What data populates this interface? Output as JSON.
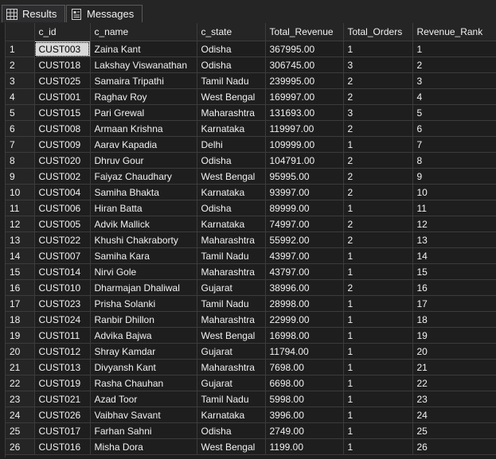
{
  "tabs": {
    "results_label": "Results",
    "messages_label": "Messages"
  },
  "columns": [
    "",
    "c_id",
    "c_name",
    "c_state",
    "Total_Revenue",
    "Total_Orders",
    "Revenue_Rank"
  ],
  "rows": [
    [
      "1",
      "CUST003",
      "Zaina Kant",
      "Odisha",
      "367995.00",
      "1",
      "1"
    ],
    [
      "2",
      "CUST018",
      "Lakshay Viswanathan",
      "Odisha",
      "306745.00",
      "3",
      "2"
    ],
    [
      "3",
      "CUST025",
      "Samaira Tripathi",
      "Tamil Nadu",
      "239995.00",
      "2",
      "3"
    ],
    [
      "4",
      "CUST001",
      "Raghav Roy",
      "West Bengal",
      "169997.00",
      "2",
      "4"
    ],
    [
      "5",
      "CUST015",
      "Pari Grewal",
      "Maharashtra",
      "131693.00",
      "3",
      "5"
    ],
    [
      "6",
      "CUST008",
      "Armaan Krishna",
      "Karnataka",
      "119997.00",
      "2",
      "6"
    ],
    [
      "7",
      "CUST009",
      "Aarav Kapadia",
      "Delhi",
      "109999.00",
      "1",
      "7"
    ],
    [
      "8",
      "CUST020",
      "Dhruv Gour",
      "Odisha",
      "104791.00",
      "2",
      "8"
    ],
    [
      "9",
      "CUST002",
      "Faiyaz Chaudhary",
      "West Bengal",
      "95995.00",
      "2",
      "9"
    ],
    [
      "10",
      "CUST004",
      "Samiha Bhakta",
      "Karnataka",
      "93997.00",
      "2",
      "10"
    ],
    [
      "11",
      "CUST006",
      "Hiran Batta",
      "Odisha",
      "89999.00",
      "1",
      "11"
    ],
    [
      "12",
      "CUST005",
      "Advik Mallick",
      "Karnataka",
      "74997.00",
      "2",
      "12"
    ],
    [
      "13",
      "CUST022",
      "Khushi Chakraborty",
      "Maharashtra",
      "55992.00",
      "2",
      "13"
    ],
    [
      "14",
      "CUST007",
      "Samiha Kara",
      "Tamil Nadu",
      "43997.00",
      "1",
      "14"
    ],
    [
      "15",
      "CUST014",
      "Nirvi Gole",
      "Maharashtra",
      "43797.00",
      "1",
      "15"
    ],
    [
      "16",
      "CUST010",
      "Dharmajan Dhaliwal",
      "Gujarat",
      "38996.00",
      "2",
      "16"
    ],
    [
      "17",
      "CUST023",
      "Prisha Solanki",
      "Tamil Nadu",
      "28998.00",
      "1",
      "17"
    ],
    [
      "18",
      "CUST024",
      "Ranbir Dhillon",
      "Maharashtra",
      "22999.00",
      "1",
      "18"
    ],
    [
      "19",
      "CUST011",
      "Advika Bajwa",
      "West Bengal",
      "16998.00",
      "1",
      "19"
    ],
    [
      "20",
      "CUST012",
      "Shray Kamdar",
      "Gujarat",
      "11794.00",
      "1",
      "20"
    ],
    [
      "21",
      "CUST013",
      "Divyansh Kant",
      "Maharashtra",
      "7698.00",
      "1",
      "21"
    ],
    [
      "22",
      "CUST019",
      "Rasha Chauhan",
      "Gujarat",
      "6698.00",
      "1",
      "22"
    ],
    [
      "23",
      "CUST021",
      "Azad Toor",
      "Tamil Nadu",
      "5998.00",
      "1",
      "23"
    ],
    [
      "24",
      "CUST026",
      "Vaibhav Savant",
      "Karnataka",
      "3996.00",
      "1",
      "24"
    ],
    [
      "25",
      "CUST017",
      "Farhan Sahni",
      "Odisha",
      "2749.00",
      "1",
      "25"
    ],
    [
      "26",
      "CUST016",
      "Misha Dora",
      "West Bengal",
      "1199.00",
      "1",
      "26"
    ]
  ],
  "selected_cell": {
    "row": 0,
    "col": 1
  },
  "icons": {
    "results": "grid-icon",
    "messages": "messages-icon"
  },
  "colors": {
    "background": "#1e1e1e",
    "header": "#252526",
    "gridline": "#3c3c3c",
    "selected": "#d9d9d9"
  }
}
